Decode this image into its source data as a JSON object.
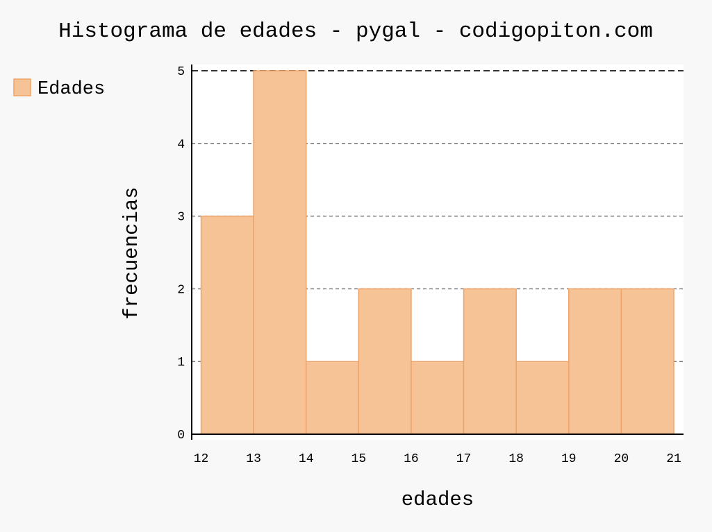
{
  "chart_data": {
    "type": "bar",
    "title": "Histograma de edades - pygal - codigopiton.com",
    "xlabel": "edades",
    "ylabel": "frecuencias",
    "legend_position": "top-left",
    "grid": true,
    "xlim": [
      12,
      21
    ],
    "ylim": [
      0,
      5
    ],
    "x_ticks": [
      "12",
      "13",
      "14",
      "15",
      "16",
      "17",
      "18",
      "19",
      "20",
      "21"
    ],
    "y_ticks": [
      "0",
      "1",
      "2",
      "3",
      "4",
      "5"
    ],
    "series": [
      {
        "name": "Edades",
        "color": "#f5c396",
        "edge_color": "#eea469",
        "bins": [
          {
            "start": 12,
            "end": 13,
            "value": 3
          },
          {
            "start": 13,
            "end": 14,
            "value": 5
          },
          {
            "start": 14,
            "end": 15,
            "value": 1
          },
          {
            "start": 15,
            "end": 16,
            "value": 2
          },
          {
            "start": 16,
            "end": 17,
            "value": 1
          },
          {
            "start": 17,
            "end": 18,
            "value": 2
          },
          {
            "start": 18,
            "end": 19,
            "value": 1
          },
          {
            "start": 19,
            "end": 20,
            "value": 2
          },
          {
            "start": 20,
            "end": 21,
            "value": 2
          }
        ]
      }
    ]
  },
  "colors": {
    "background": "#f8f8f8",
    "plot_background": "#ffffff",
    "grid": "#7a7a7a",
    "axis": "#000000"
  }
}
